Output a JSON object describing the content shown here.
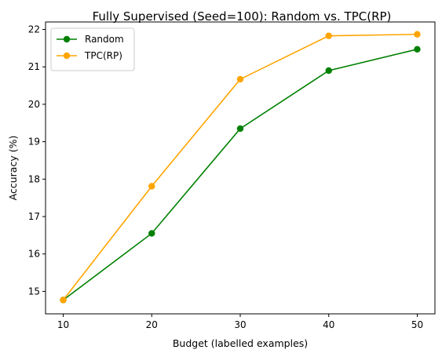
{
  "chart_data": {
    "type": "line",
    "title": "Fully Supervised (Seed=100): Random vs. TPC(RP)",
    "xlabel": "Budget (labelled examples)",
    "ylabel": "Accuracy (%)",
    "x": [
      10,
      20,
      30,
      40,
      50
    ],
    "xticks": [
      "10",
      "20",
      "30",
      "40",
      "50"
    ],
    "yticks": [
      "15",
      "16",
      "17",
      "18",
      "19",
      "20",
      "21",
      "22"
    ],
    "xlim": [
      8,
      52
    ],
    "ylim": [
      14.4,
      22.2
    ],
    "grid": false,
    "legend_position": "top-left",
    "series": [
      {
        "name": "Random",
        "color": "#008000",
        "marker": "circle",
        "values": [
          14.77,
          16.55,
          19.35,
          20.9,
          21.47
        ]
      },
      {
        "name": "TPC(RP)",
        "color": "#ffa500",
        "marker": "circle",
        "values": [
          14.77,
          17.81,
          20.67,
          21.83,
          21.87
        ]
      }
    ]
  }
}
